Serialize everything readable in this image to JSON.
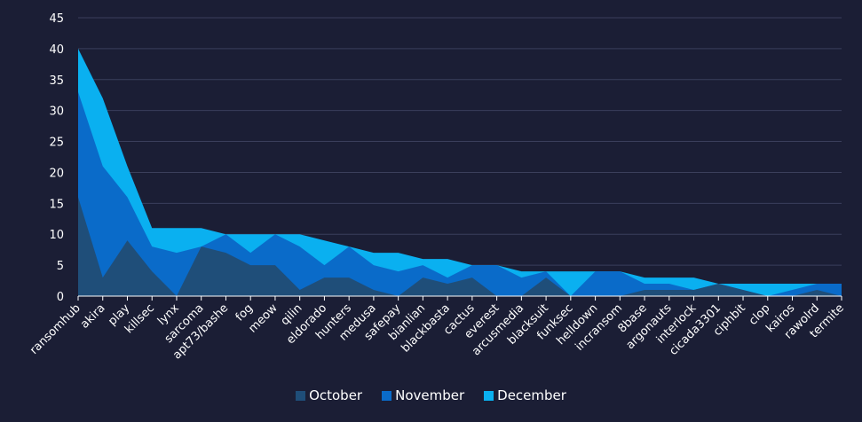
{
  "chart_data": {
    "type": "area",
    "stacked": true,
    "categories": [
      "ransomhub",
      "akira",
      "play",
      "killsec",
      "lynx",
      "sarcoma",
      "apt73/bashe",
      "fog",
      "meow",
      "qilin",
      "eldorado",
      "hunters",
      "medusa",
      "safepay",
      "bianlian",
      "blackbasta",
      "cactus",
      "everest",
      "arcusmedia",
      "blacksuit",
      "funksec",
      "helldown",
      "incransom",
      "8base",
      "argonauts",
      "interlock",
      "cicada3301",
      "ciphbit",
      "clop",
      "kairos",
      "rawolrd",
      "termite"
    ],
    "series": [
      {
        "name": "October",
        "color": "#1f4e79",
        "values": [
          16,
          3,
          9,
          4,
          0,
          8,
          7,
          5,
          5,
          1,
          3,
          3,
          1,
          0,
          3,
          2,
          3,
          0,
          0,
          3,
          0,
          0,
          0,
          1,
          1,
          1,
          2,
          1,
          0,
          0,
          1,
          0
        ]
      },
      {
        "name": "November",
        "color": "#0a6bc9",
        "values": [
          17,
          18,
          7,
          4,
          7,
          0,
          3,
          2,
          5,
          7,
          2,
          5,
          4,
          4,
          2,
          1,
          2,
          5,
          3,
          1,
          0,
          4,
          4,
          1,
          1,
          0,
          0,
          0,
          0,
          1,
          1,
          2
        ]
      },
      {
        "name": "December",
        "color": "#0ab0f0",
        "values": [
          7,
          11,
          5,
          3,
          4,
          3,
          0,
          3,
          0,
          2,
          4,
          0,
          2,
          3,
          1,
          3,
          0,
          0,
          1,
          0,
          4,
          0,
          0,
          1,
          1,
          2,
          0,
          1,
          2,
          1,
          0,
          0
        ]
      }
    ],
    "ylim": [
      0,
      45
    ],
    "yticks": [
      0,
      5,
      10,
      15,
      20,
      25,
      30,
      35,
      40,
      45
    ],
    "grid": true,
    "legend_position": "bottom"
  }
}
